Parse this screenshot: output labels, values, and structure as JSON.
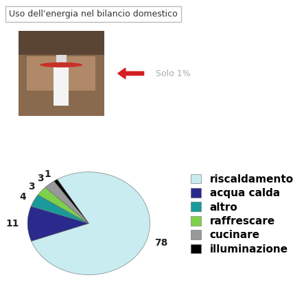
{
  "chart_data": {
    "type": "pie",
    "title": "Uso dell'energia nel bilancio domestico",
    "annotation": "Solo 1%",
    "categories": [
      "riscaldamento",
      "acqua calda",
      "altro",
      "raffrescare",
      "cucinare",
      "illuminazione"
    ],
    "values": [
      78,
      11,
      4,
      3,
      3,
      1
    ],
    "colors": [
      "#c8ecf0",
      "#2a2a8c",
      "#1a9a9a",
      "#7ed04a",
      "#999999",
      "#000000"
    ],
    "data_labels": true,
    "legend": "right"
  }
}
